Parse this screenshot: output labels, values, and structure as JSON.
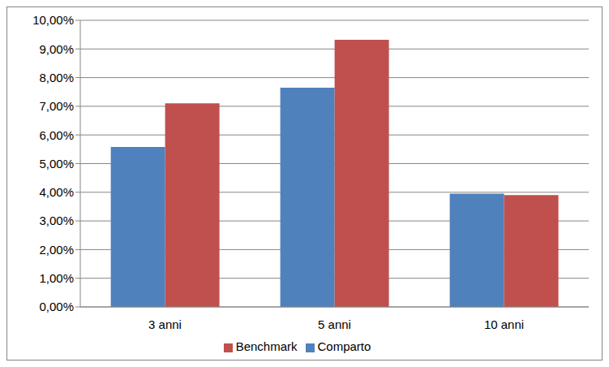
{
  "chart_data": {
    "type": "bar",
    "categories": [
      "3 anni",
      "5 anni",
      "10 anni"
    ],
    "series": [
      {
        "name": "Comparto",
        "color": "#4f81bd",
        "values": [
          5.58,
          7.65,
          3.95
        ]
      },
      {
        "name": "Benchmark",
        "color": "#c0504d",
        "values": [
          7.1,
          9.32,
          3.9
        ]
      }
    ],
    "ylim": [
      0,
      10
    ],
    "yticks": [
      {
        "value": 0,
        "label": "0,00%"
      },
      {
        "value": 1,
        "label": "1,00%"
      },
      {
        "value": 2,
        "label": "2,00%"
      },
      {
        "value": 3,
        "label": "3,00%"
      },
      {
        "value": 4,
        "label": "4,00%"
      },
      {
        "value": 5,
        "label": "5,00%"
      },
      {
        "value": 6,
        "label": "6,00%"
      },
      {
        "value": 7,
        "label": "7,00%"
      },
      {
        "value": 8,
        "label": "8,00%"
      },
      {
        "value": 9,
        "label": "9,00%"
      },
      {
        "value": 10,
        "label": "10,00%"
      }
    ],
    "grid": true,
    "legend": "bottom"
  }
}
